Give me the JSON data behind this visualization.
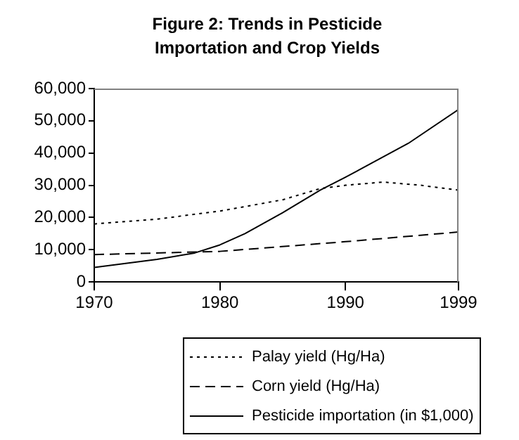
{
  "chart_data": {
    "type": "line",
    "title": "Figure 2: Trends in Pesticide Importation and Crop Yields",
    "xlim": [
      1970,
      1999
    ],
    "xticks": [
      1970,
      1980,
      1990,
      1999
    ],
    "ylim": [
      0,
      60000
    ],
    "yticks": [
      {
        "value": 0,
        "label": "0"
      },
      {
        "value": 10000,
        "label": "10,000"
      },
      {
        "value": 20000,
        "label": "20,000"
      },
      {
        "value": 30000,
        "label": "30,000"
      },
      {
        "value": 40000,
        "label": "40,000"
      },
      {
        "value": 50000,
        "label": "50,000"
      },
      {
        "value": 60000,
        "label": "60,000"
      }
    ],
    "grid": false,
    "legend": "bottom",
    "marker": "none",
    "series": [
      {
        "name": "Palay yield (Hg/Ha)",
        "color": "#000000",
        "line_style": "dotted",
        "x": [
          1970,
          1975,
          1980,
          1985,
          1988,
          1990,
          1993,
          1996,
          1999
        ],
        "values": [
          18000,
          19500,
          22000,
          25500,
          29000,
          30000,
          31000,
          30000,
          28500
        ]
      },
      {
        "name": "Corn yield (Hg/Ha)",
        "color": "#000000",
        "line_style": "dashed",
        "x": [
          1970,
          1980,
          1990,
          1999
        ],
        "values": [
          8500,
          9500,
          12500,
          15500
        ]
      },
      {
        "name": "Pesticide importation (in $1,000)",
        "color": "#000000",
        "line_style": "solid",
        "x": [
          1970,
          1975,
          1978,
          1980,
          1982,
          1985,
          1988,
          1990,
          1995,
          1999
        ],
        "values": [
          4500,
          7000,
          9000,
          11500,
          15000,
          21500,
          28500,
          32500,
          43000,
          53500
        ]
      }
    ]
  }
}
